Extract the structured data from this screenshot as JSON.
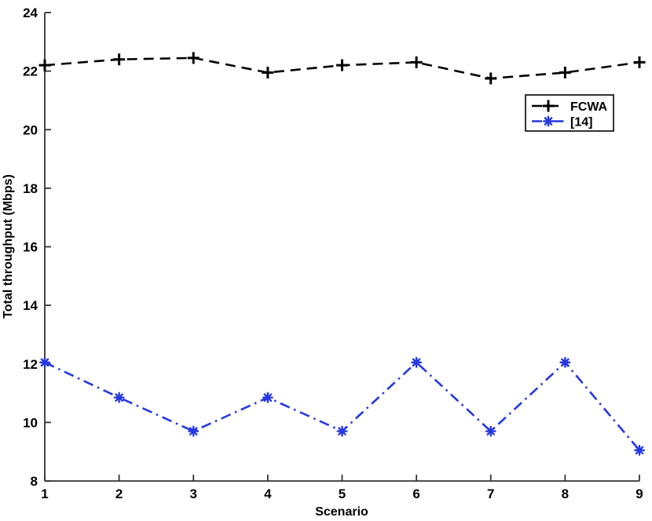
{
  "figure": {
    "background_color": "#ffffff",
    "axis_color": "#333333",
    "text_color": "#000000"
  },
  "chart_data": {
    "type": "line",
    "title": "",
    "xlabel": "Scenario",
    "ylabel": "Total throughput (Mbps)",
    "x": [
      1,
      2,
      3,
      4,
      5,
      6,
      7,
      8,
      9
    ],
    "xlim": [
      1,
      9
    ],
    "ylim": [
      8,
      24
    ],
    "xticks": [
      1,
      2,
      3,
      4,
      5,
      6,
      7,
      8,
      9
    ],
    "yticks": [
      8,
      10,
      12,
      14,
      16,
      18,
      20,
      22,
      24
    ],
    "grid": false,
    "legend": {
      "position": "upper-right-inside",
      "border": true,
      "background": "#ffffff",
      "border_color": "#000000"
    },
    "series": [
      {
        "name": "FCWA",
        "color": "#000000",
        "line_style": "dashed",
        "marker": "plus",
        "values": [
          22.2,
          22.4,
          22.45,
          21.95,
          22.2,
          22.3,
          21.75,
          21.95,
          22.3
        ]
      },
      {
        "name": "[14]",
        "color": "#2638e0",
        "line_style": "dash-dot",
        "marker": "asterisk",
        "values": [
          12.05,
          10.85,
          9.7,
          10.85,
          9.7,
          12.05,
          9.7,
          12.05,
          9.05
        ]
      }
    ]
  }
}
